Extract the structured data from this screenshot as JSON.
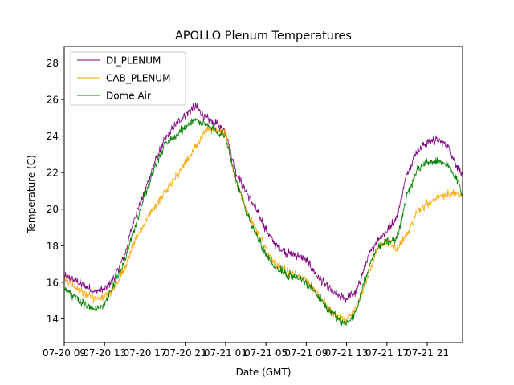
{
  "chart_data": {
    "type": "line",
    "title": "APOLLO Plenum Temperatures",
    "xlabel": "Date (GMT)",
    "ylabel": "Temperature (C)",
    "xlim": [
      0,
      39.5
    ],
    "ylim": [
      12.7,
      28.9
    ],
    "y_ticks": [
      14,
      16,
      18,
      20,
      22,
      24,
      26,
      28
    ],
    "x_ticks": [
      {
        "pos": 0,
        "label": "07-20 09"
      },
      {
        "pos": 4,
        "label": "07-20 13"
      },
      {
        "pos": 8,
        "label": "07-20 17"
      },
      {
        "pos": 12,
        "label": "07-20 21"
      },
      {
        "pos": 16,
        "label": "07-21 01"
      },
      {
        "pos": 20,
        "label": "07-21 05"
      },
      {
        "pos": 24,
        "label": "07-21 09"
      },
      {
        "pos": 28,
        "label": "07-21 13"
      },
      {
        "pos": 32,
        "label": "07-21 17"
      },
      {
        "pos": 36,
        "label": "07-21 21"
      }
    ],
    "legend_position": "top-left",
    "series": [
      {
        "name": "DI_PLENUM",
        "color": "#800080",
        "noise": 0.28,
        "points": [
          [
            0,
            16.3
          ],
          [
            1,
            16.1
          ],
          [
            2,
            15.8
          ],
          [
            3,
            15.5
          ],
          [
            4,
            15.6
          ],
          [
            5,
            16.3
          ],
          [
            6,
            17.5
          ],
          [
            7,
            19.6
          ],
          [
            8,
            21.0
          ],
          [
            9,
            22.6
          ],
          [
            10,
            23.8
          ],
          [
            11,
            24.6
          ],
          [
            12,
            25.2
          ],
          [
            13,
            25.6
          ],
          [
            14,
            25.0
          ],
          [
            15,
            24.7
          ],
          [
            16,
            24.3
          ],
          [
            17,
            22.0
          ],
          [
            18,
            21.0
          ],
          [
            19,
            20.0
          ],
          [
            20,
            18.9
          ],
          [
            21,
            18.0
          ],
          [
            22,
            17.6
          ],
          [
            23,
            17.5
          ],
          [
            24,
            17.2
          ],
          [
            25,
            16.4
          ],
          [
            26,
            15.8
          ],
          [
            27,
            15.3
          ],
          [
            28,
            15.1
          ],
          [
            29,
            15.5
          ],
          [
            30,
            17.2
          ],
          [
            31,
            18.3
          ],
          [
            32,
            18.8
          ],
          [
            33,
            19.6
          ],
          [
            34,
            22.0
          ],
          [
            35,
            23.2
          ],
          [
            36,
            23.7
          ],
          [
            37,
            23.8
          ],
          [
            38,
            23.5
          ],
          [
            39,
            22.3
          ],
          [
            39.5,
            21.8
          ]
        ]
      },
      {
        "name": "CAB_PLENUM",
        "color": "#ffa500",
        "noise": 0.28,
        "points": [
          [
            0,
            16.2
          ],
          [
            1,
            15.8
          ],
          [
            2,
            15.4
          ],
          [
            3,
            15.1
          ],
          [
            4,
            15.2
          ],
          [
            5,
            15.7
          ],
          [
            6,
            16.8
          ],
          [
            7,
            18.3
          ],
          [
            8,
            19.3
          ],
          [
            9,
            20.2
          ],
          [
            10,
            21.0
          ],
          [
            11,
            21.7
          ],
          [
            12,
            22.5
          ],
          [
            13,
            23.4
          ],
          [
            14,
            24.3
          ],
          [
            15,
            24.4
          ],
          [
            16,
            24.1
          ],
          [
            17,
            21.5
          ],
          [
            18,
            20.0
          ],
          [
            19,
            18.9
          ],
          [
            20,
            17.8
          ],
          [
            21,
            17.0
          ],
          [
            22,
            16.6
          ],
          [
            23,
            16.4
          ],
          [
            24,
            16.1
          ],
          [
            25,
            15.4
          ],
          [
            26,
            14.7
          ],
          [
            27,
            14.2
          ],
          [
            28,
            13.9
          ],
          [
            29,
            14.6
          ],
          [
            30,
            16.1
          ],
          [
            31,
            17.8
          ],
          [
            32,
            18.2
          ],
          [
            33,
            17.8
          ],
          [
            34,
            18.6
          ],
          [
            35,
            19.8
          ],
          [
            36,
            20.3
          ],
          [
            37,
            20.7
          ],
          [
            38,
            20.8
          ],
          [
            39,
            20.9
          ],
          [
            39.5,
            20.8
          ]
        ]
      },
      {
        "name": "Dome Air",
        "color": "#008000",
        "noise": 0.3,
        "points": [
          [
            0,
            15.7
          ],
          [
            1,
            15.2
          ],
          [
            2,
            14.8
          ],
          [
            3,
            14.5
          ],
          [
            4,
            14.8
          ],
          [
            5,
            15.9
          ],
          [
            6,
            17.2
          ],
          [
            7,
            19.0
          ],
          [
            8,
            20.8
          ],
          [
            9,
            22.3
          ],
          [
            10,
            23.6
          ],
          [
            11,
            24.0
          ],
          [
            12,
            24.5
          ],
          [
            13,
            24.9
          ],
          [
            14,
            24.6
          ],
          [
            15,
            24.3
          ],
          [
            16,
            24.0
          ],
          [
            17,
            21.6
          ],
          [
            18,
            20.0
          ],
          [
            19,
            18.6
          ],
          [
            20,
            17.5
          ],
          [
            21,
            16.8
          ],
          [
            22,
            16.4
          ],
          [
            23,
            16.3
          ],
          [
            24,
            16.0
          ],
          [
            25,
            15.4
          ],
          [
            26,
            14.6
          ],
          [
            27,
            14.1
          ],
          [
            28,
            13.7
          ],
          [
            29,
            14.5
          ],
          [
            30,
            16.5
          ],
          [
            31,
            17.9
          ],
          [
            32,
            18.3
          ],
          [
            33,
            18.4
          ],
          [
            34,
            20.8
          ],
          [
            35,
            22.1
          ],
          [
            36,
            22.5
          ],
          [
            37,
            22.6
          ],
          [
            38,
            22.4
          ],
          [
            39,
            21.6
          ],
          [
            39.5,
            20.8
          ]
        ]
      }
    ]
  }
}
